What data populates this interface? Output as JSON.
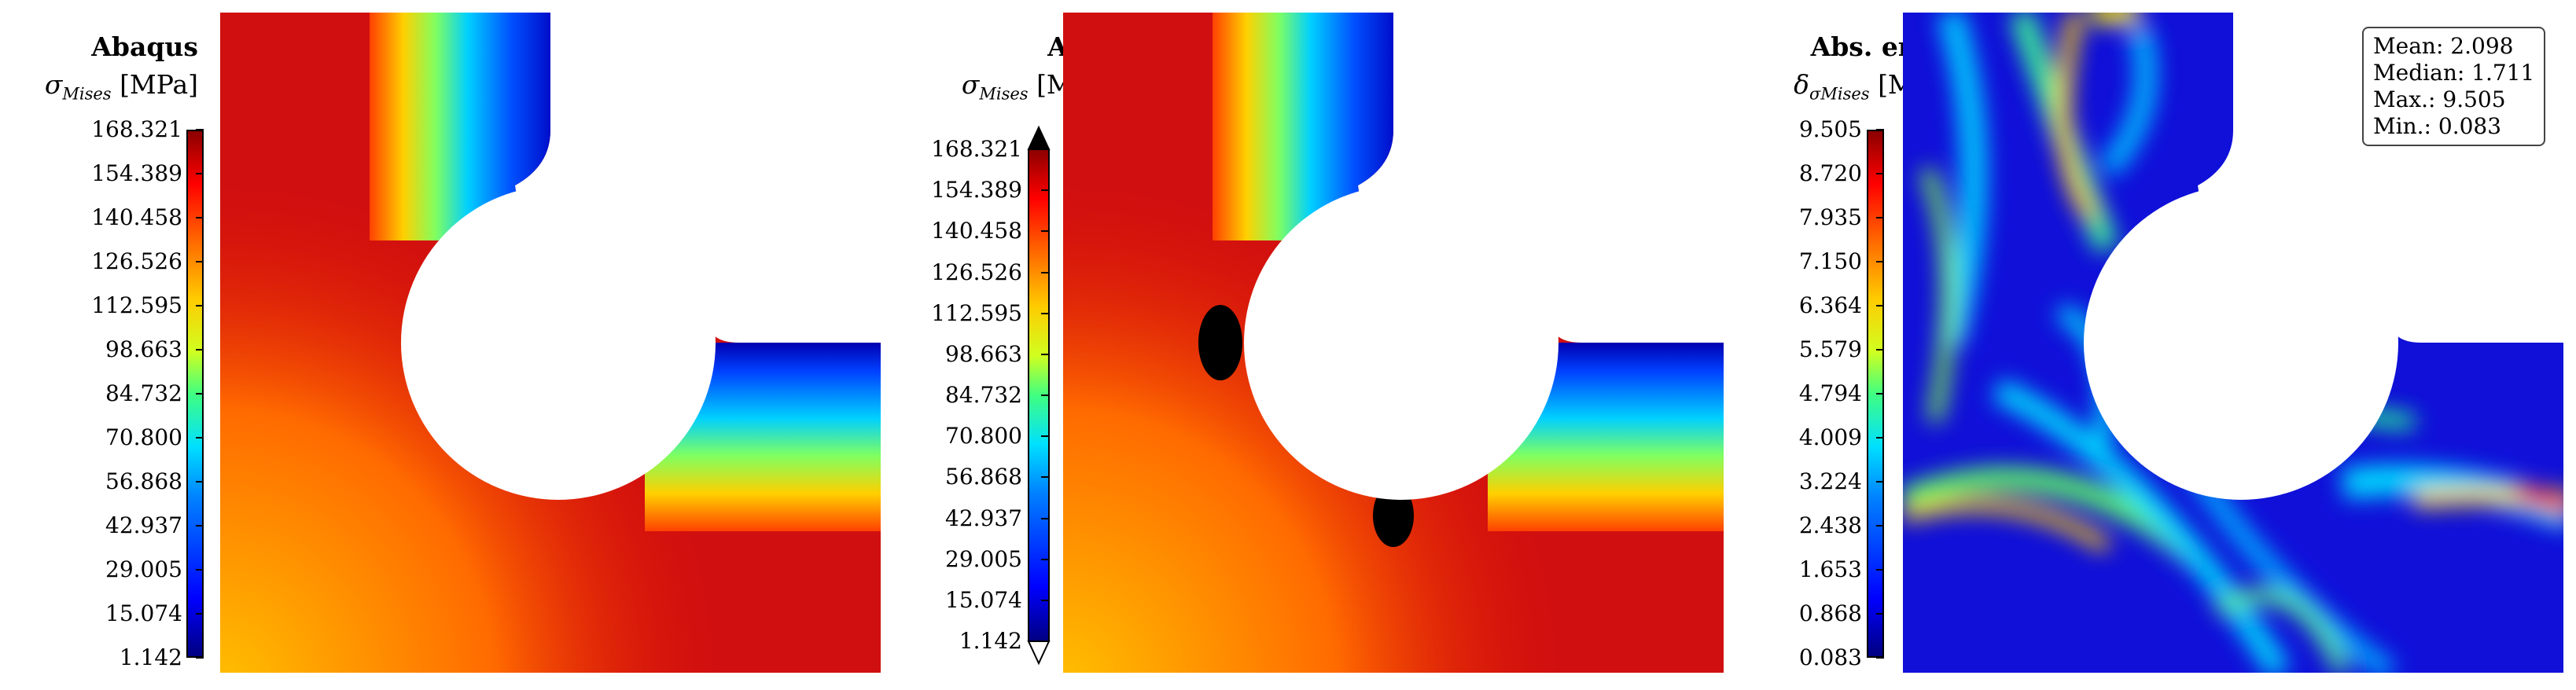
{
  "panels": [
    {
      "title": "Abaqus",
      "symbol": "σ",
      "subscript": "Mises",
      "unit": "[MPa]",
      "ticks": [
        "168.321",
        "154.389",
        "140.458",
        "126.526",
        "112.595",
        "98.663",
        "84.732",
        "70.800",
        "56.868",
        "42.937",
        "29.005",
        "15.074",
        "1.142"
      ]
    },
    {
      "title": "ANN",
      "symbol": "σ",
      "subscript": "Mises",
      "unit": "[MPa]",
      "ticks": [
        "168.321",
        "154.389",
        "140.458",
        "126.526",
        "112.595",
        "98.663",
        "84.732",
        "70.800",
        "56.868",
        "42.937",
        "29.005",
        "15.074",
        "1.142"
      ]
    },
    {
      "title": "Abs. error",
      "symbol": "δ",
      "subscript": "σMises",
      "unit": "[MPa]",
      "ticks": [
        "9.505",
        "8.720",
        "7.935",
        "7.150",
        "6.364",
        "5.579",
        "4.794",
        "4.009",
        "3.224",
        "2.438",
        "1.653",
        "0.868",
        "0.083"
      ]
    }
  ],
  "stats": {
    "mean": "Mean: 2.098",
    "median": "Median: 1.711",
    "max": "Max.: 9.505",
    "min": "Min.: 0.083"
  }
}
